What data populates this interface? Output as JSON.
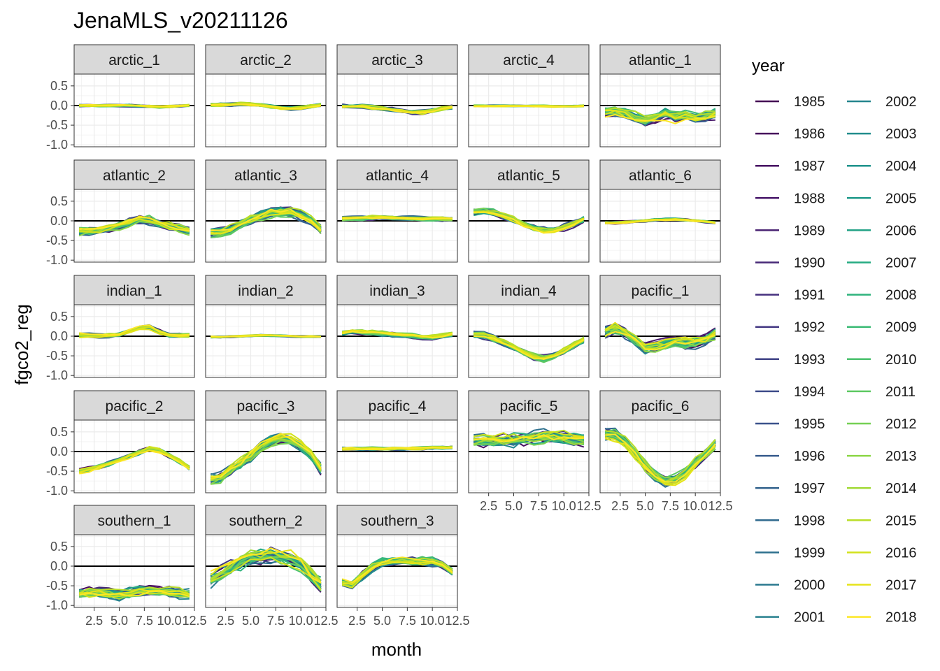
{
  "chart_data": {
    "type": "line",
    "title": "JenaMLS_v20211126",
    "xlabel": "month",
    "ylabel": "fgco2_reg",
    "legend_title": "year",
    "legend_position": "right",
    "xlim": [
      0.5,
      12.5
    ],
    "ylim": [
      -1.05,
      0.8
    ],
    "x_ticks": [
      2.5,
      5.0,
      7.5,
      10.0,
      12.5
    ],
    "x_tick_labels": [
      "2.5",
      "5.0",
      "7.5",
      "10.0",
      "12.5"
    ],
    "y_ticks": [
      0.5,
      0.0,
      -0.5,
      -1.0
    ],
    "y_tick_labels": [
      "0.5",
      "0.0",
      "-0.5",
      "-1.0"
    ],
    "reference_line_y": 0,
    "years": [
      1985,
      1986,
      1987,
      1988,
      1989,
      1990,
      1991,
      1992,
      1993,
      1994,
      1995,
      1996,
      1997,
      1998,
      1999,
      2000,
      2001,
      2002,
      2003,
      2004,
      2005,
      2006,
      2007,
      2008,
      2009,
      2010,
      2011,
      2012,
      2013,
      2014,
      2015,
      2016,
      2017,
      2018
    ],
    "year_colors": [
      "#440154",
      "#46085c",
      "#471063",
      "#48186a",
      "#482071",
      "#472877",
      "#46307e",
      "#443983",
      "#414487",
      "#3e4c8a",
      "#3b528b",
      "#375b8d",
      "#33638d",
      "#306a8e",
      "#2d708e",
      "#2a788e",
      "#27808e",
      "#25858e",
      "#228d8d",
      "#20938c",
      "#1f9a8a",
      "#21a185",
      "#25ab82",
      "#2eb37c",
      "#3bbb75",
      "#4ac16d",
      "#5ec962",
      "#75d054",
      "#8bd646",
      "#a2da37",
      "#bade28",
      "#d2e21b",
      "#e5e419",
      "#fde725"
    ],
    "months": [
      1,
      2,
      3,
      4,
      5,
      6,
      7,
      8,
      9,
      10,
      11,
      12
    ],
    "panels": [
      {
        "name": "arctic_1",
        "mean": [
          0,
          0,
          0,
          0,
          0,
          0,
          -0.01,
          -0.02,
          -0.03,
          -0.03,
          -0.01,
          0
        ],
        "spread": 0.03
      },
      {
        "name": "arctic_2",
        "mean": [
          0.02,
          0.02,
          0.02,
          0.03,
          0.02,
          0,
          -0.03,
          -0.06,
          -0.07,
          -0.06,
          -0.03,
          0.01
        ],
        "spread": 0.04
      },
      {
        "name": "arctic_3",
        "mean": [
          -0.02,
          -0.02,
          -0.03,
          -0.05,
          -0.07,
          -0.1,
          -0.14,
          -0.17,
          -0.18,
          -0.14,
          -0.08,
          -0.04
        ],
        "spread": 0.05
      },
      {
        "name": "arctic_4",
        "mean": [
          -0.01,
          -0.01,
          -0.01,
          -0.01,
          -0.01,
          -0.01,
          -0.01,
          -0.01,
          -0.02,
          -0.02,
          -0.02,
          -0.01
        ],
        "spread": 0.02
      },
      {
        "name": "atlantic_1",
        "mean": [
          -0.15,
          -0.15,
          -0.2,
          -0.32,
          -0.4,
          -0.32,
          -0.2,
          -0.3,
          -0.25,
          -0.32,
          -0.3,
          -0.2
        ],
        "spread": 0.14
      },
      {
        "name": "atlantic_2",
        "mean": [
          -0.28,
          -0.27,
          -0.25,
          -0.2,
          -0.13,
          -0.04,
          0.02,
          0,
          -0.08,
          -0.15,
          -0.2,
          -0.28
        ],
        "spread": 0.1
      },
      {
        "name": "atlantic_3",
        "mean": [
          -0.3,
          -0.28,
          -0.22,
          -0.1,
          0.02,
          0.12,
          0.2,
          0.23,
          0.22,
          0.15,
          0,
          -0.22
        ],
        "spread": 0.12
      },
      {
        "name": "atlantic_4",
        "mean": [
          0.05,
          0.06,
          0.07,
          0.08,
          0.09,
          0.08,
          0.07,
          0.06,
          0.05,
          0.05,
          0.05,
          0.05
        ],
        "spread": 0.05
      },
      {
        "name": "atlantic_5",
        "mean": [
          0.22,
          0.24,
          0.2,
          0.12,
          0.02,
          -0.1,
          -0.2,
          -0.25,
          -0.25,
          -0.18,
          -0.08,
          0.04
        ],
        "spread": 0.08
      },
      {
        "name": "atlantic_6",
        "mean": [
          -0.05,
          -0.05,
          -0.04,
          -0.02,
          0,
          0.03,
          0.04,
          0.04,
          0.02,
          0,
          -0.02,
          -0.05
        ],
        "spread": 0.03
      },
      {
        "name": "indian_1",
        "mean": [
          0.02,
          0.02,
          0.01,
          0.01,
          0.04,
          0.12,
          0.2,
          0.22,
          0.1,
          0.02,
          0.02,
          0.02
        ],
        "spread": 0.05
      },
      {
        "name": "indian_2",
        "mean": [
          -0.02,
          -0.02,
          -0.01,
          0,
          0.01,
          0.02,
          0.02,
          0.01,
          0,
          -0.01,
          -0.01,
          -0.01
        ],
        "spread": 0.02
      },
      {
        "name": "indian_3",
        "mean": [
          0.08,
          0.12,
          0.1,
          0.08,
          0.06,
          0.04,
          0.02,
          0,
          -0.03,
          -0.04,
          0,
          0.04
        ],
        "spread": 0.06
      },
      {
        "name": "indian_4",
        "mean": [
          0.04,
          0.02,
          -0.06,
          -0.18,
          -0.3,
          -0.42,
          -0.52,
          -0.56,
          -0.5,
          -0.38,
          -0.24,
          -0.1
        ],
        "spread": 0.08
      },
      {
        "name": "pacific_1",
        "mean": [
          0.12,
          0.22,
          0.1,
          -0.1,
          -0.3,
          -0.26,
          -0.2,
          -0.12,
          -0.18,
          -0.16,
          -0.1,
          0.05
        ],
        "spread": 0.14
      },
      {
        "name": "pacific_2",
        "mean": [
          -0.5,
          -0.46,
          -0.4,
          -0.32,
          -0.22,
          -0.12,
          -0.02,
          0.07,
          0.02,
          -0.12,
          -0.26,
          -0.42
        ],
        "spread": 0.06
      },
      {
        "name": "pacific_3",
        "mean": [
          -0.72,
          -0.68,
          -0.5,
          -0.3,
          -0.1,
          0.1,
          0.25,
          0.32,
          0.28,
          0.15,
          -0.1,
          -0.45
        ],
        "spread": 0.14
      },
      {
        "name": "pacific_4",
        "mean": [
          0.07,
          0.07,
          0.06,
          0.06,
          0.06,
          0.07,
          0.07,
          0.08,
          0.08,
          0.09,
          0.09,
          0.1
        ],
        "spread": 0.04
      },
      {
        "name": "pacific_5",
        "mean": [
          0.28,
          0.26,
          0.25,
          0.28,
          0.3,
          0.34,
          0.36,
          0.38,
          0.36,
          0.34,
          0.3,
          0.28
        ],
        "spread": 0.16
      },
      {
        "name": "pacific_6",
        "mean": [
          0.45,
          0.42,
          0.25,
          -0.05,
          -0.35,
          -0.6,
          -0.75,
          -0.7,
          -0.55,
          -0.3,
          -0.05,
          0.2
        ],
        "spread": 0.14
      },
      {
        "name": "southern_1",
        "mean": [
          -0.68,
          -0.66,
          -0.65,
          -0.68,
          -0.72,
          -0.68,
          -0.62,
          -0.6,
          -0.62,
          -0.64,
          -0.68,
          -0.72
        ],
        "spread": 0.12
      },
      {
        "name": "southern_2",
        "mean": [
          -0.35,
          -0.2,
          -0.05,
          0.1,
          0.2,
          0.25,
          0.28,
          0.26,
          0.2,
          0.05,
          -0.25,
          -0.5
        ],
        "spread": 0.18
      },
      {
        "name": "southern_3",
        "mean": [
          -0.42,
          -0.48,
          -0.25,
          -0.05,
          0.08,
          0.1,
          0.12,
          0.12,
          0.12,
          0.1,
          0.02,
          -0.15
        ],
        "spread": 0.1
      }
    ]
  }
}
